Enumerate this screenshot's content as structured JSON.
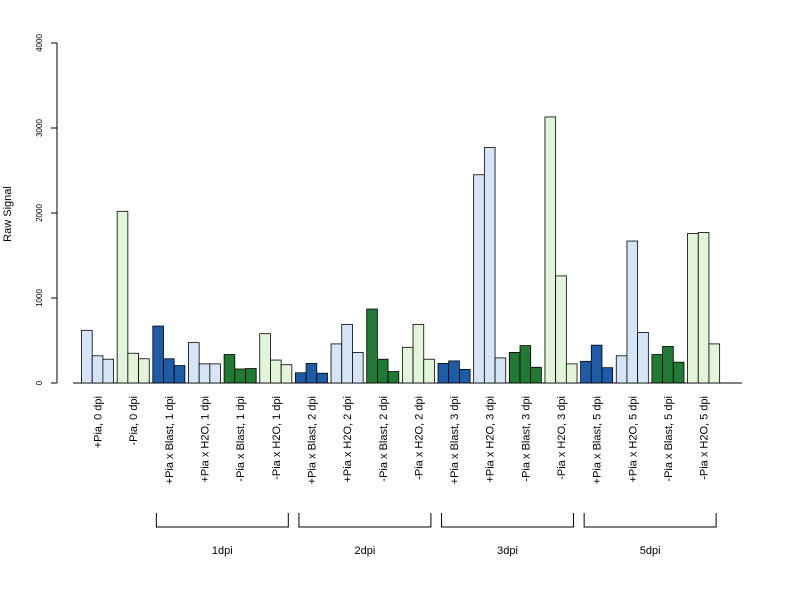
{
  "chart_data": {
    "type": "bar",
    "title": "",
    "xlabel": "",
    "ylabel": "Raw Signal",
    "ylim": [
      0,
      4000
    ],
    "yticks": [
      "0",
      "1000",
      "2000",
      "3000",
      "4000"
    ],
    "grid": false,
    "legend": "none",
    "colors": {
      "light_blue": "#d6e5f5",
      "dark_blue": "#1f5ca8",
      "light_green": "#e2f4da",
      "dark_green": "#217a34"
    },
    "categories": [
      {
        "label": "+Pia, 0 dpi",
        "color": "light_blue",
        "values": [
          620,
          320,
          280
        ]
      },
      {
        "label": "-Pia, 0 dpi",
        "color": "light_green",
        "values": [
          2020,
          350,
          285
        ]
      },
      {
        "label": "+Pia x Blast, 1 dpi",
        "color": "dark_blue",
        "values": [
          670,
          285,
          205
        ]
      },
      {
        "label": "+Pia x H2O, 1 dpi",
        "color": "light_blue",
        "values": [
          475,
          225,
          225
        ]
      },
      {
        "label": "-Pia x Blast, 1 dpi",
        "color": "dark_green",
        "values": [
          335,
          165,
          170
        ]
      },
      {
        "label": "-Pia x H2O, 1 dpi",
        "color": "light_green",
        "values": [
          580,
          270,
          215
        ]
      },
      {
        "label": "+Pia x Blast, 2 dpi",
        "color": "dark_blue",
        "values": [
          120,
          230,
          115
        ]
      },
      {
        "label": "+Pia x H2O, 2 dpi",
        "color": "light_blue",
        "values": [
          460,
          690,
          360
        ]
      },
      {
        "label": "-Pia x Blast, 2 dpi",
        "color": "dark_green",
        "values": [
          870,
          280,
          135
        ]
      },
      {
        "label": "-Pia x H2O, 2 dpi",
        "color": "light_green",
        "values": [
          420,
          690,
          280
        ]
      },
      {
        "label": "+Pia x Blast, 3 dpi",
        "color": "dark_blue",
        "values": [
          230,
          260,
          160
        ]
      },
      {
        "label": "+Pia x H2O, 3 dpi",
        "color": "light_blue",
        "values": [
          2450,
          2770,
          295
        ]
      },
      {
        "label": "-Pia x Blast, 3 dpi",
        "color": "dark_green",
        "values": [
          360,
          440,
          185
        ]
      },
      {
        "label": "-Pia x H2O, 3 dpi",
        "color": "light_green",
        "values": [
          3130,
          1260,
          225
        ]
      },
      {
        "label": "+Pia x Blast, 5 dpi",
        "color": "dark_blue",
        "values": [
          255,
          445,
          180
        ]
      },
      {
        "label": "+Pia x H2O, 5 dpi",
        "color": "light_blue",
        "values": [
          320,
          1670,
          595
        ]
      },
      {
        "label": "-Pia x Blast, 5 dpi",
        "color": "dark_green",
        "values": [
          335,
          430,
          245
        ]
      },
      {
        "label": "-Pia x H2O, 5 dpi",
        "color": "light_green",
        "values": [
          1760,
          1770,
          460
        ]
      }
    ],
    "groups": [
      {
        "label": "1dpi",
        "first": 2,
        "last": 5
      },
      {
        "label": "2dpi",
        "first": 6,
        "last": 9
      },
      {
        "label": "3dpi",
        "first": 10,
        "last": 13
      },
      {
        "label": "5dpi",
        "first": 14,
        "last": 17
      }
    ]
  }
}
